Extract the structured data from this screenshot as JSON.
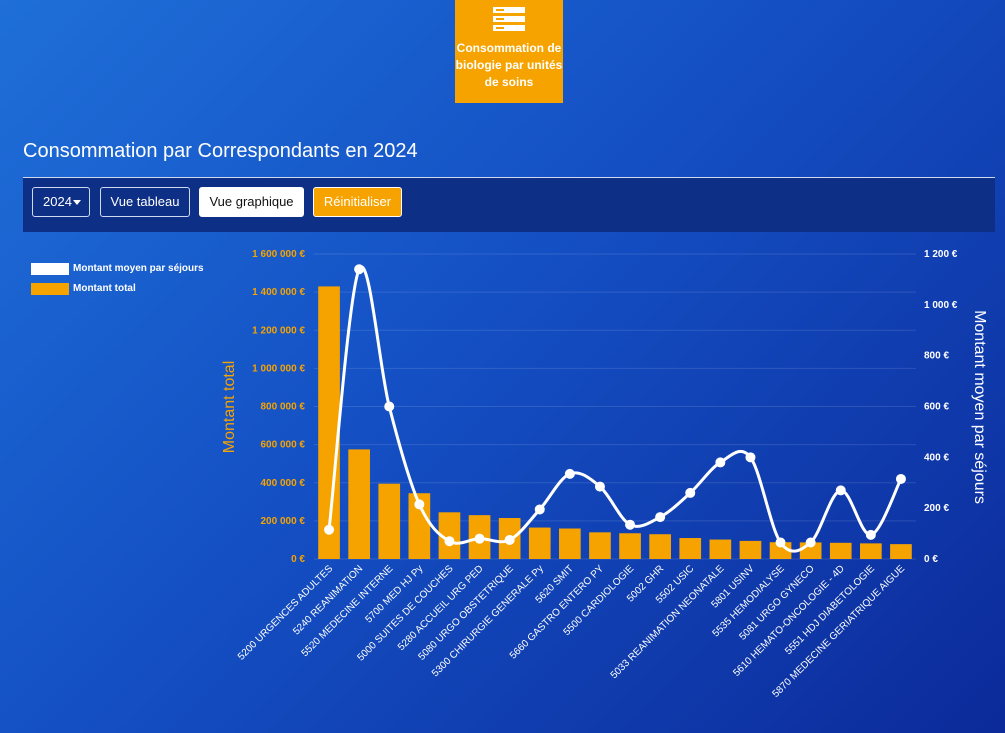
{
  "tile": {
    "label": "Consommation de\nbiologie par unités\nde soins",
    "icon": "server-stack-icon",
    "color": "#f6a300"
  },
  "page": {
    "title": "Consommation par Correspondants en 2024"
  },
  "toolbar": {
    "year_value": "2024",
    "table_view_label": "Vue tableau",
    "graph_view_label": "Vue graphique",
    "reset_label": "Réinitialiser"
  },
  "legend": [
    {
      "label": "Montant moyen par séjours",
      "color": "#ffffff"
    },
    {
      "label": "Montant total",
      "color": "#f6a300"
    }
  ],
  "chart_data": {
    "type": "bar",
    "categories": [
      "5200 URGENCES ADULTES",
      "5240 REANIMATION",
      "5520 MEDECINE INTERNE",
      "5700 MED HJ Py",
      "5000 SUITES DE COUCHES",
      "5280 ACCUEIL URG PED",
      "5080 URGO OBSTETRIQUE",
      "5300 CHIRURGIE GENERALE Py",
      "5620 SMIT",
      "5660 GASTRO ENTERO PY",
      "5500 CARDIOLOGIE",
      "5002 GHR",
      "5502 USIC",
      "5033 REANIMATION NEONATALE",
      "5801 USINV",
      "5535 HEMODIALYSE",
      "5081 URGO GYNECO",
      "5610 HEMATO-ONCOLOGIE - 4D",
      "5551 HDJ DIABETOLOGIE",
      "5870 MEDECINE GERIATRIQUE AIGUE"
    ],
    "series": [
      {
        "name": "Montant total",
        "type": "bar",
        "axis": "left",
        "color": "#f6a300",
        "values": [
          1430000,
          575000,
          395000,
          345000,
          245000,
          230000,
          215000,
          165000,
          160000,
          140000,
          135000,
          130000,
          110000,
          102000,
          95000,
          88000,
          87000,
          85000,
          82000,
          78000
        ]
      },
      {
        "name": "Montant moyen par séjours",
        "type": "spline",
        "axis": "right",
        "color": "#ffffff",
        "values": [
          115,
          1140,
          600,
          215,
          70,
          80,
          75,
          195,
          335,
          285,
          135,
          165,
          260,
          380,
          400,
          65,
          65,
          270,
          95,
          315
        ]
      }
    ],
    "y_left": {
      "label": "Montant total",
      "min": 0,
      "max": 1600000,
      "ticks": [
        "0 €",
        "200 000 €",
        "400 000 €",
        "600 000 €",
        "800 000 €",
        "1 000 000 €",
        "1 200 000 €",
        "1 400 000 €",
        "1 600 000 €"
      ],
      "color": "#f6a300"
    },
    "y_right": {
      "label": "Montant moyen par séjours",
      "min": 0,
      "max": 1200,
      "ticks": [
        "0 €",
        "200 €",
        "400 €",
        "600 €",
        "800 €",
        "1 000 €",
        "1 200 €"
      ],
      "color": "#ffffff"
    },
    "grid": true,
    "legend_position": "top-left"
  }
}
